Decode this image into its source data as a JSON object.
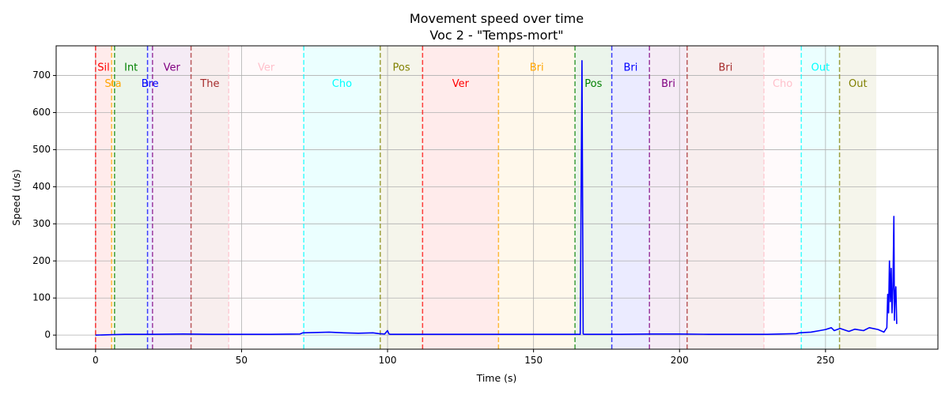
{
  "chart_data": {
    "type": "line",
    "title": "Movement speed over time",
    "subtitle": "Voc 2 - \"Temps-mort\"",
    "xlabel": "Time (s)",
    "ylabel": "Speed (u/s)",
    "xlim": [
      -13.5,
      288.5
    ],
    "ylim": [
      -38,
      780
    ],
    "xticks": [
      0,
      50,
      100,
      150,
      200,
      250
    ],
    "yticks": [
      0,
      100,
      200,
      300,
      400,
      500,
      600,
      700
    ],
    "grid": true,
    "segments": [
      {
        "start": 0.0,
        "end": 5.5,
        "label": "Sil",
        "row": 0,
        "color": "#ff0000"
      },
      {
        "start": 5.5,
        "end": 6.5,
        "label": "Sta",
        "row": 1,
        "color": "#ffa500"
      },
      {
        "start": 6.5,
        "end": 17.8,
        "label": "Int",
        "row": 0,
        "color": "#008000"
      },
      {
        "start": 17.8,
        "end": 19.5,
        "label": "Bre",
        "row": 1,
        "color": "#0000ff"
      },
      {
        "start": 19.5,
        "end": 32.7,
        "label": "Ver",
        "row": 0,
        "color": "#800080"
      },
      {
        "start": 32.7,
        "end": 45.6,
        "label": "The",
        "row": 1,
        "color": "#a52a2a"
      },
      {
        "start": 45.6,
        "end": 71.3,
        "label": "Ver",
        "row": 0,
        "color": "#ffc0cb"
      },
      {
        "start": 71.3,
        "end": 97.5,
        "label": "Cho",
        "row": 1,
        "color": "#00ffff"
      },
      {
        "start": 97.5,
        "end": 112.0,
        "label": "Pos",
        "row": 0,
        "color": "#808000"
      },
      {
        "start": 112.0,
        "end": 138.0,
        "label": "Ver",
        "row": 1,
        "color": "#ff0000"
      },
      {
        "start": 138.0,
        "end": 164.2,
        "label": "Bri",
        "row": 0,
        "color": "#ffa500"
      },
      {
        "start": 164.2,
        "end": 176.8,
        "label": "Pos",
        "row": 1,
        "color": "#008000"
      },
      {
        "start": 176.8,
        "end": 189.7,
        "label": "Bri",
        "row": 0,
        "color": "#0000ff"
      },
      {
        "start": 189.7,
        "end": 202.6,
        "label": "Bri",
        "row": 1,
        "color": "#800080"
      },
      {
        "start": 202.6,
        "end": 228.9,
        "label": "Bri",
        "row": 0,
        "color": "#a52a2a"
      },
      {
        "start": 228.9,
        "end": 241.7,
        "label": "Cho",
        "row": 1,
        "color": "#ffc0cb"
      },
      {
        "start": 241.7,
        "end": 254.8,
        "label": "Out",
        "row": 0,
        "color": "#00ffff"
      },
      {
        "start": 254.8,
        "end": 267.4,
        "label": "Out",
        "row": 1,
        "color": "#808000"
      }
    ],
    "series": [
      {
        "color": "#0000ff",
        "x": [
          0,
          5,
          10,
          20,
          30,
          40,
          50,
          60,
          70,
          71,
          75,
          80,
          85,
          90,
          95,
          97,
          99,
          100,
          100.5,
          101,
          110,
          120,
          130,
          140,
          150,
          160,
          166,
          166.6,
          167,
          167.4,
          168,
          180,
          190,
          200,
          210,
          220,
          230,
          240,
          241,
          245,
          248,
          250,
          252,
          253,
          255,
          258,
          260,
          263,
          265,
          268,
          270,
          271,
          271.3,
          271.6,
          271.9,
          272.2,
          272.5,
          272.8,
          273.1,
          273.4,
          273.6,
          273.8,
          274.1,
          274.4
        ],
        "y": [
          0,
          1,
          2,
          2,
          3,
          2,
          2,
          2,
          3,
          6,
          7,
          8,
          6,
          5,
          6,
          4,
          3,
          12,
          3,
          2,
          2,
          2,
          2,
          2,
          2,
          2,
          2,
          740,
          3,
          2,
          2,
          2,
          3,
          3,
          2,
          2,
          2,
          4,
          6,
          8,
          12,
          15,
          20,
          12,
          18,
          10,
          16,
          12,
          20,
          15,
          8,
          20,
          110,
          60,
          200,
          90,
          180,
          60,
          130,
          320,
          40,
          100,
          130,
          30
        ]
      }
    ]
  }
}
